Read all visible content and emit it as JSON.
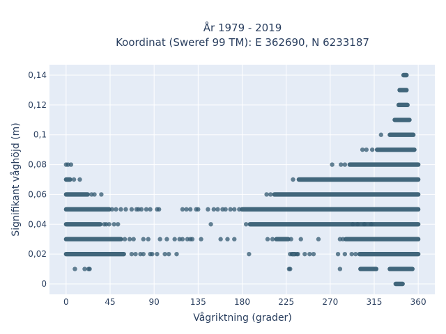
{
  "chart_data": {
    "type": "scatter",
    "title": [
      "År 1979 - 2019",
      "Koordinat (Sweref 99 TM): E 362690, N 6233187"
    ],
    "xlabel": "Vågriktning (grader)",
    "ylabel": "Signifikant våghöjd (m)",
    "xlim": [
      -17,
      377
    ],
    "ylim": [
      -0.007,
      0.147
    ],
    "grid": true,
    "legend": "none",
    "colors": {
      "marker": "#335a70",
      "plot_bg": "#e5ecf6",
      "grid": "#ffffff",
      "text": "#2a3f5f"
    },
    "x_ticks": [
      {
        "value": 0,
        "label": "0"
      },
      {
        "value": 45,
        "label": "45"
      },
      {
        "value": 90,
        "label": "90"
      },
      {
        "value": 135,
        "label": "135"
      },
      {
        "value": 180,
        "label": "180"
      },
      {
        "value": 225,
        "label": "225"
      },
      {
        "value": 270,
        "label": "270"
      },
      {
        "value": 315,
        "label": "315"
      },
      {
        "value": 360,
        "label": "360"
      }
    ],
    "y_ticks": [
      {
        "value": 0,
        "label": "0"
      },
      {
        "value": 0.02,
        "label": "0,02"
      },
      {
        "value": 0.04,
        "label": "0,04"
      },
      {
        "value": 0.06,
        "label": "0,06"
      },
      {
        "value": 0.08,
        "label": "0,08"
      },
      {
        "value": 0.1,
        "label": "0,1"
      },
      {
        "value": 0.12,
        "label": "0,12"
      },
      {
        "value": 0.14,
        "label": "0,14"
      }
    ],
    "bands": [
      {
        "y": 0.14,
        "dense": [
          [
            345,
            348
          ]
        ],
        "points": []
      },
      {
        "y": 0.13,
        "dense": [
          [
            341,
            348
          ]
        ],
        "points": []
      },
      {
        "y": 0.12,
        "dense": [
          [
            340,
            349
          ]
        ],
        "points": []
      },
      {
        "y": 0.11,
        "dense": [
          [
            336,
            351
          ]
        ],
        "points": []
      },
      {
        "y": 0.1,
        "dense": [
          [
            331,
            355
          ]
        ],
        "points": [
          322
        ]
      },
      {
        "y": 0.09,
        "dense": [
          [
            318,
            356
          ]
        ],
        "points": [
          303,
          307,
          313
        ]
      },
      {
        "y": 0.08,
        "dense": [
          [
            290,
            360
          ]
        ],
        "points": [
          0,
          2,
          5,
          272,
          281,
          285
        ]
      },
      {
        "y": 0.07,
        "dense": [
          [
            0,
            4
          ],
          [
            238,
            360
          ]
        ],
        "points": [
          8,
          14,
          232
        ]
      },
      {
        "y": 0.06,
        "dense": [
          [
            0,
            22
          ],
          [
            213,
            360
          ]
        ],
        "points": [
          26,
          29,
          36,
          205,
          209
        ]
      },
      {
        "y": 0.05,
        "dense": [
          [
            0,
            44
          ],
          [
            180,
            360
          ]
        ],
        "points": [
          47,
          51,
          56,
          61,
          67,
          72,
          74,
          77,
          82,
          86,
          93,
          95,
          119,
          123,
          127,
          133,
          135,
          145,
          151,
          155,
          160,
          163,
          168,
          172,
          177
        ]
      },
      {
        "y": 0.04,
        "dense": [
          [
            0,
            35
          ],
          [
            188,
            360
          ]
        ],
        "points": [
          39,
          41,
          44,
          49,
          53,
          184,
          293,
          298,
          305,
          312
        ]
      },
      {
        "y": 0.03,
        "dense": [
          [
            0,
            56
          ],
          [
            215,
            227
          ],
          [
            286,
            360
          ]
        ],
        "points": [
          60,
          65,
          69,
          79,
          84,
          96,
          103,
          111,
          116,
          119,
          124,
          127,
          129,
          138,
          158,
          165,
          172,
          206,
          211,
          230,
          240,
          258,
          280,
          283
        ]
      },
      {
        "y": 0.02,
        "dense": [
          [
            0,
            59
          ],
          [
            231,
            234
          ],
          [
            300,
            360
          ]
        ],
        "points": [
          67,
          71,
          76,
          79,
          86,
          88,
          93,
          101,
          105,
          113,
          187,
          229,
          236,
          237,
          244,
          249,
          253,
          278,
          285,
          292,
          296
        ]
      },
      {
        "y": 0.01,
        "dense": [
          [
            301,
            317
          ],
          [
            331,
            354
          ]
        ],
        "points": [
          9,
          19,
          23,
          24,
          228,
          229,
          280
        ]
      },
      {
        "y": 0.0,
        "dense": [
          [
            337,
            344
          ]
        ],
        "points": []
      }
    ],
    "extra_points": [
      {
        "x": 148,
        "y": 0.04
      }
    ]
  }
}
